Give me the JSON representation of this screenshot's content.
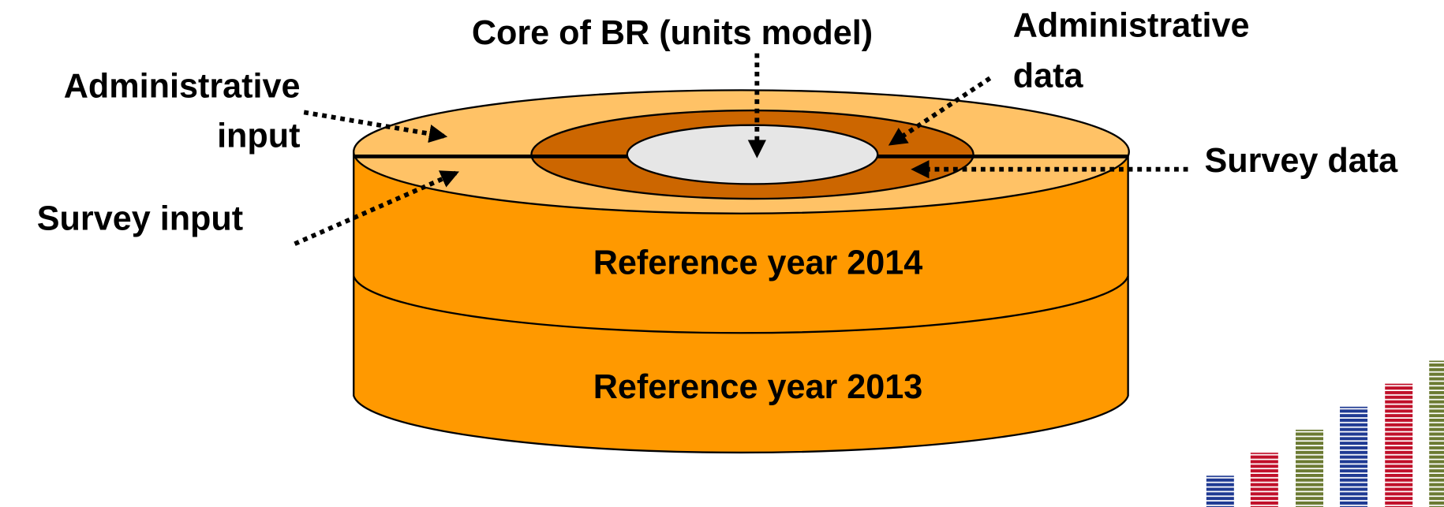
{
  "diagram": {
    "core_label": "Core of BR (units model)",
    "admin_data_label": [
      "Administrative",
      "data"
    ],
    "admin_input_label": [
      "Administrative",
      "input"
    ],
    "survey_input_label": "Survey input",
    "survey_data_label": "Survey data",
    "layers": [
      "Reference year 2014",
      "Reference year 2013"
    ]
  }
}
